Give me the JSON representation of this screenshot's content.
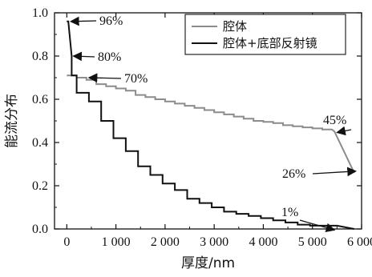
{
  "chart_data": {
    "type": "line",
    "xlabel": "厚度/nm",
    "ylabel": "能流分布",
    "xlim": [
      -250,
      6000
    ],
    "ylim": [
      0.0,
      1.0
    ],
    "x_ticks": [
      0,
      1000,
      2000,
      3000,
      4000,
      5000,
      6000
    ],
    "x_tick_labels": [
      "0",
      "1 000",
      "2 000",
      "3 000",
      "4 000",
      "5 000",
      "6 000"
    ],
    "y_ticks": [
      0.0,
      0.2,
      0.4,
      0.6,
      0.8,
      1.0
    ],
    "y_tick_labels": [
      "0.0",
      "0.2",
      "0.4",
      "0.6",
      "0.8",
      "1.0"
    ],
    "legend": {
      "position": "top-right"
    },
    "series": [
      {
        "name": "腔体",
        "color": "#8c8c8c",
        "points": [
          [
            0,
            0.71
          ],
          [
            200,
            0.71
          ],
          [
            200,
            0.7
          ],
          [
            400,
            0.7
          ],
          [
            400,
            0.69
          ],
          [
            600,
            0.69
          ],
          [
            600,
            0.67
          ],
          [
            800,
            0.67
          ],
          [
            800,
            0.66
          ],
          [
            1000,
            0.66
          ],
          [
            1000,
            0.65
          ],
          [
            1200,
            0.65
          ],
          [
            1200,
            0.64
          ],
          [
            1400,
            0.64
          ],
          [
            1400,
            0.62
          ],
          [
            1600,
            0.62
          ],
          [
            1600,
            0.61
          ],
          [
            1800,
            0.61
          ],
          [
            1800,
            0.6
          ],
          [
            2000,
            0.6
          ],
          [
            2000,
            0.59
          ],
          [
            2200,
            0.59
          ],
          [
            2200,
            0.58
          ],
          [
            2400,
            0.58
          ],
          [
            2400,
            0.57
          ],
          [
            2600,
            0.57
          ],
          [
            2600,
            0.56
          ],
          [
            2800,
            0.56
          ],
          [
            2800,
            0.55
          ],
          [
            3000,
            0.55
          ],
          [
            3000,
            0.54
          ],
          [
            3200,
            0.54
          ],
          [
            3200,
            0.53
          ],
          [
            3400,
            0.53
          ],
          [
            3400,
            0.52
          ],
          [
            3600,
            0.52
          ],
          [
            3600,
            0.51
          ],
          [
            3800,
            0.51
          ],
          [
            3800,
            0.5
          ],
          [
            4000,
            0.5
          ],
          [
            4000,
            0.495
          ],
          [
            4200,
            0.495
          ],
          [
            4200,
            0.49
          ],
          [
            4400,
            0.49
          ],
          [
            4400,
            0.48
          ],
          [
            4600,
            0.48
          ],
          [
            4600,
            0.475
          ],
          [
            4800,
            0.475
          ],
          [
            4800,
            0.47
          ],
          [
            5000,
            0.47
          ],
          [
            5000,
            0.465
          ],
          [
            5200,
            0.465
          ],
          [
            5200,
            0.46
          ],
          [
            5400,
            0.46
          ],
          [
            5450,
            0.45
          ],
          [
            5850,
            0.26
          ]
        ]
      },
      {
        "name": "腔体+底部反射镜",
        "color": "#111111",
        "points": [
          [
            0,
            0.96
          ],
          [
            30,
            0.96
          ],
          [
            100,
            0.8
          ],
          [
            100,
            0.71
          ],
          [
            200,
            0.71
          ],
          [
            200,
            0.63
          ],
          [
            450,
            0.63
          ],
          [
            450,
            0.59
          ],
          [
            700,
            0.59
          ],
          [
            700,
            0.5
          ],
          [
            950,
            0.5
          ],
          [
            950,
            0.42
          ],
          [
            1200,
            0.42
          ],
          [
            1200,
            0.36
          ],
          [
            1450,
            0.36
          ],
          [
            1450,
            0.29
          ],
          [
            1700,
            0.29
          ],
          [
            1700,
            0.25
          ],
          [
            1950,
            0.25
          ],
          [
            1950,
            0.21
          ],
          [
            2200,
            0.21
          ],
          [
            2200,
            0.18
          ],
          [
            2450,
            0.18
          ],
          [
            2450,
            0.14
          ],
          [
            2700,
            0.14
          ],
          [
            2700,
            0.12
          ],
          [
            2950,
            0.12
          ],
          [
            2950,
            0.1
          ],
          [
            3200,
            0.1
          ],
          [
            3200,
            0.08
          ],
          [
            3450,
            0.08
          ],
          [
            3450,
            0.07
          ],
          [
            3700,
            0.07
          ],
          [
            3700,
            0.06
          ],
          [
            3950,
            0.06
          ],
          [
            3950,
            0.05
          ],
          [
            4200,
            0.05
          ],
          [
            4200,
            0.04
          ],
          [
            4450,
            0.04
          ],
          [
            4450,
            0.03
          ],
          [
            4700,
            0.03
          ],
          [
            4700,
            0.02
          ],
          [
            4950,
            0.02
          ],
          [
            4950,
            0.015
          ],
          [
            5500,
            0.015
          ],
          [
            5850,
            0.0
          ]
        ]
      }
    ],
    "annotations": [
      {
        "text": "96%",
        "x": 30,
        "y": 0.96
      },
      {
        "text": "80%",
        "x": 100,
        "y": 0.8
      },
      {
        "text": "70%",
        "x": 400,
        "y": 0.7
      },
      {
        "text": "45%",
        "x": 5450,
        "y": 0.45
      },
      {
        "text": "26%",
        "x": 5850,
        "y": 0.26
      },
      {
        "text": "1%",
        "x": 5400,
        "y": 0.01
      }
    ]
  }
}
